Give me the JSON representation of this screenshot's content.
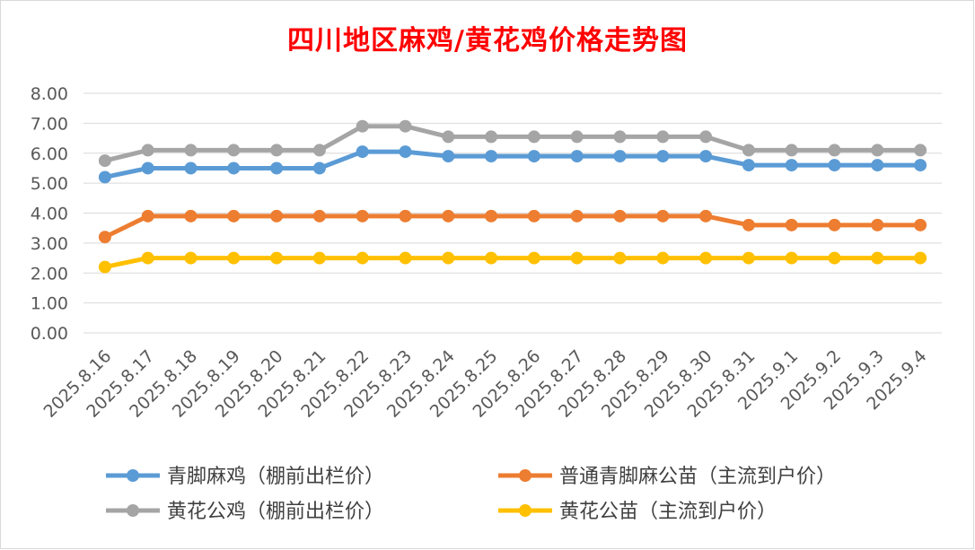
{
  "chart_data": {
    "type": "line",
    "title": "四川地区麻鸡/黄花鸡价格走势图",
    "xlabel": "",
    "ylabel": "",
    "ylim": [
      0,
      8
    ],
    "y_ticks": [
      "0.00",
      "1.00",
      "2.00",
      "3.00",
      "4.00",
      "5.00",
      "6.00",
      "7.00",
      "8.00"
    ],
    "grid": true,
    "legend_position": "bottom",
    "categories": [
      "2025.8.16",
      "2025.8.17",
      "2025.8.18",
      "2025.8.19",
      "2025.8.20",
      "2025.8.21",
      "2025.8.22",
      "2025.8.23",
      "2025.8.24",
      "2025.8.25",
      "2025.8.26",
      "2025.8.27",
      "2025.8.28",
      "2025.8.29",
      "2025.8.30",
      "2025.8.31",
      "2025.9.1",
      "2025.9.2",
      "2025.9.3",
      "2025.9.4"
    ],
    "series": [
      {
        "name": "青脚麻鸡（棚前出栏价）",
        "color": "#5b9bd5",
        "values": [
          5.2,
          5.5,
          5.5,
          5.5,
          5.5,
          5.5,
          6.05,
          6.05,
          5.9,
          5.9,
          5.9,
          5.9,
          5.9,
          5.9,
          5.9,
          5.6,
          5.6,
          5.6,
          5.6,
          5.6
        ]
      },
      {
        "name": "普通青脚麻公苗（主流到户价）",
        "color": "#ed7d31",
        "values": [
          3.2,
          3.9,
          3.9,
          3.9,
          3.9,
          3.9,
          3.9,
          3.9,
          3.9,
          3.9,
          3.9,
          3.9,
          3.9,
          3.9,
          3.9,
          3.6,
          3.6,
          3.6,
          3.6,
          3.6
        ]
      },
      {
        "name": "黄花公鸡（棚前出栏价）",
        "color": "#a5a5a5",
        "values": [
          5.75,
          6.1,
          6.1,
          6.1,
          6.1,
          6.1,
          6.9,
          6.9,
          6.55,
          6.55,
          6.55,
          6.55,
          6.55,
          6.55,
          6.55,
          6.1,
          6.1,
          6.1,
          6.1,
          6.1
        ]
      },
      {
        "name": "黄花公苗（主流到户价）",
        "color": "#ffc000",
        "values": [
          2.2,
          2.5,
          2.5,
          2.5,
          2.5,
          2.5,
          2.5,
          2.5,
          2.5,
          2.5,
          2.5,
          2.5,
          2.5,
          2.5,
          2.5,
          2.5,
          2.5,
          2.5,
          2.5,
          2.5
        ]
      }
    ]
  }
}
